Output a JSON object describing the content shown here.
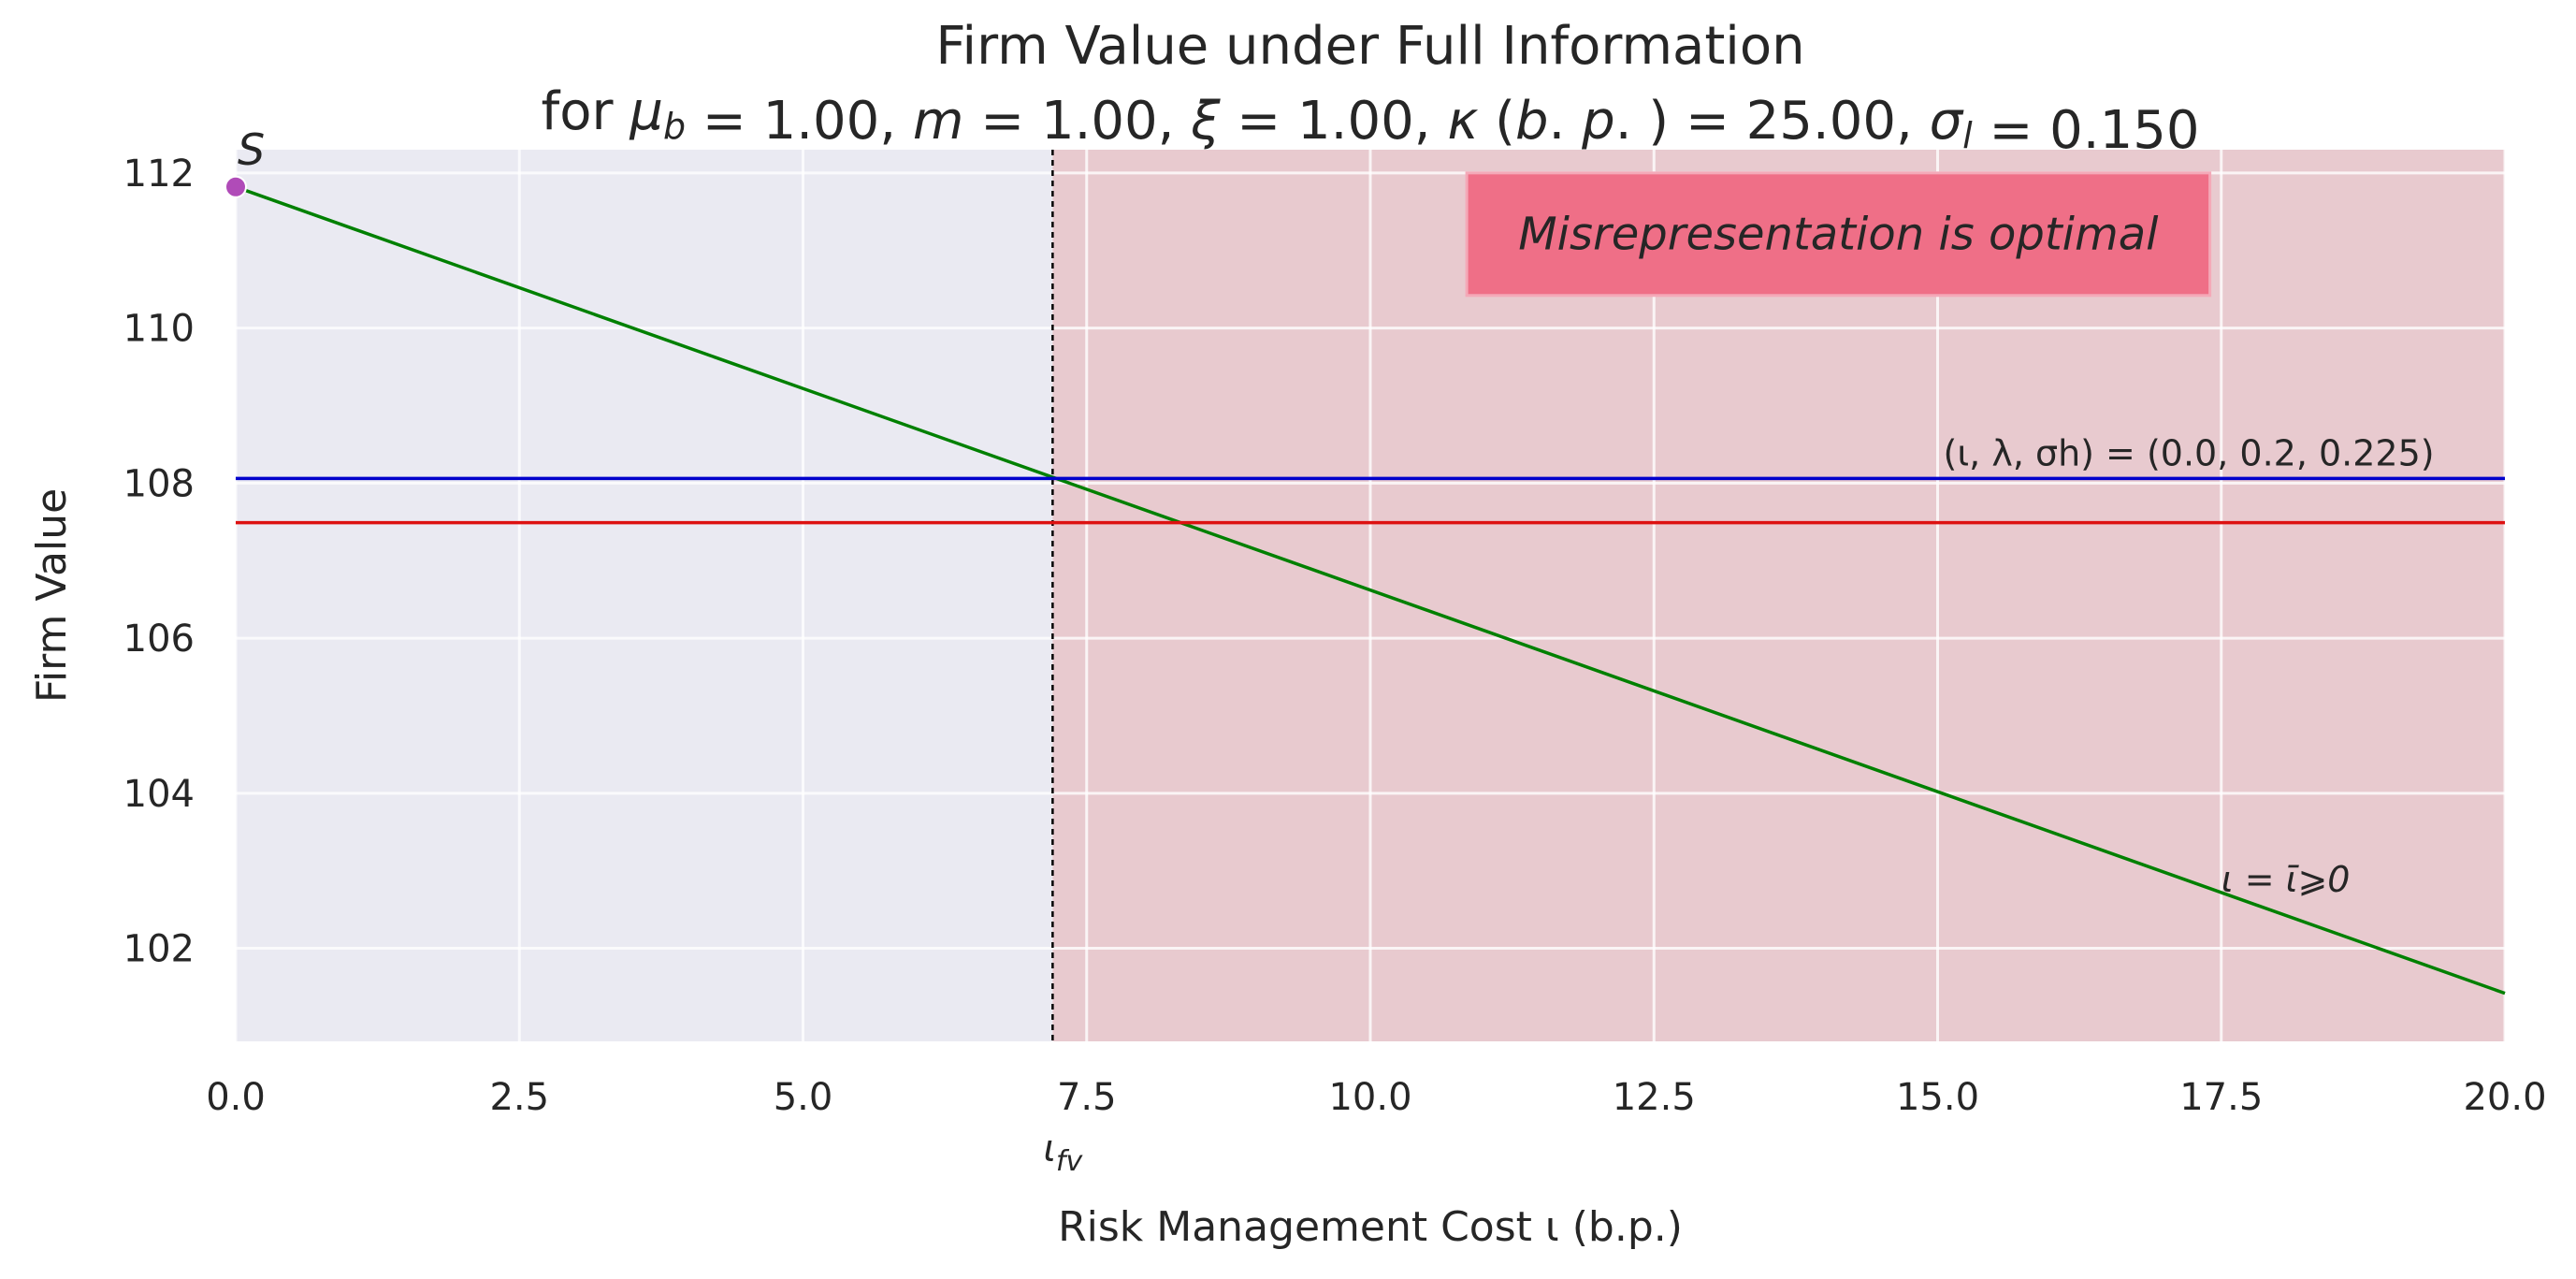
{
  "chart_data": {
    "type": "line",
    "title_line1": "Firm Value under Full Information",
    "title_line2_parts": [
      {
        "t": "for ",
        "i": false
      },
      {
        "t": "μ",
        "i": true
      },
      {
        "t": "b",
        "i": true,
        "sub": true
      },
      {
        "t": " =  1.00, ",
        "i": false
      },
      {
        "t": "m",
        "i": true
      },
      {
        "t": " =  1.00, ",
        "i": false
      },
      {
        "t": "ξ",
        "i": true
      },
      {
        "t": " =  1.00, ",
        "i": false
      },
      {
        "t": "κ",
        "i": true
      },
      {
        "t": " (",
        "i": false
      },
      {
        "t": "b",
        "i": true
      },
      {
        "t": ". ",
        "i": false
      },
      {
        "t": "p",
        "i": true
      },
      {
        "t": ". ) =  25.00, ",
        "i": false
      },
      {
        "t": "σ",
        "i": true
      },
      {
        "t": "l",
        "i": true,
        "sub": true
      },
      {
        "t": " =  0.150",
        "i": false
      }
    ],
    "xlabel": "Risk Management Cost ι (b.p.)",
    "ylabel": "Firm Value",
    "xlim": [
      0,
      20
    ],
    "ylim": [
      100.8,
      112.3
    ],
    "xticks": [
      0.0,
      2.5,
      5.0,
      7.5,
      10.0,
      12.5,
      15.0,
      17.5,
      20.0
    ],
    "xtick_labels": [
      "0.0",
      "2.5",
      "5.0",
      "7.5",
      "10.0",
      "12.5",
      "15.0",
      "17.5",
      "20.0"
    ],
    "yticks": [
      102,
      104,
      106,
      108,
      110,
      112
    ],
    "ytick_labels": [
      "102",
      "104",
      "106",
      "108",
      "110",
      "112"
    ],
    "grid": true,
    "series": [
      {
        "x": [
          0,
          20
        ],
        "y": [
          111.82,
          101.42
        ],
        "color": "#008000"
      },
      {
        "x": [
          0,
          20
        ],
        "y": [
          108.06,
          108.06
        ],
        "color": "#0000cc"
      },
      {
        "x": [
          0,
          20
        ],
        "y": [
          107.49,
          107.49
        ],
        "color": "#dd1111"
      }
    ],
    "point": {
      "label": "S",
      "x": 0.0,
      "y": 111.82,
      "color": "#b04bb8"
    },
    "shaded_region": {
      "x_start": 7.2,
      "x_end": 20,
      "color": "#e8c4c9"
    },
    "vline": {
      "x": 7.2,
      "label_main": "ι",
      "label_sub": "fv"
    },
    "region_box": {
      "text": "Misrepresentation is optimal",
      "color": "#ef6f87",
      "x0": 10.85,
      "x1": 17.4,
      "y0": 110.42,
      "y1": 112.0
    },
    "annotation_blue": {
      "text": "(ι, λ, σh) = (0.0, 0.2, 0.225)",
      "x": 17.4,
      "y": 108.25
    },
    "annotation_green": {
      "text": "ι = ῑ⩾0",
      "x": 17.5,
      "y": 102.9
    }
  }
}
